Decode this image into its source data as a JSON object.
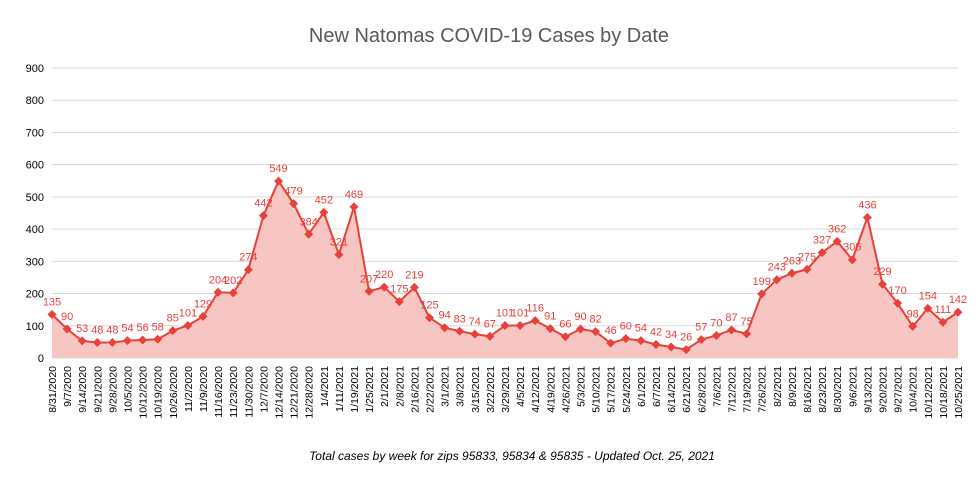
{
  "chart_data": {
    "type": "area",
    "title": "New Natomas COVID-19 Cases by Date",
    "caption": "Total cases by week for zips 95833, 95834 & 95835 - Updated Oct. 25, 2021",
    "xlabel": "",
    "ylabel": "",
    "ylim": [
      0,
      900
    ],
    "yticks": [
      0,
      100,
      200,
      300,
      400,
      500,
      600,
      700,
      800,
      900
    ],
    "grid": true,
    "legend": "none",
    "colors": {
      "line": "#e8403a",
      "fill": "#f8c6c2",
      "label": "#e8403a",
      "grid": "#d9d9d9",
      "title": "#595959"
    },
    "categories": [
      "8/31/2020",
      "9/7/2020",
      "9/14/2020",
      "9/21/2020",
      "9/28/2020",
      "10/5/2020",
      "10/12/2020",
      "10/19/2020",
      "10/26/2020",
      "11/2/2020",
      "11/9/2020",
      "11/16/2020",
      "11/23/2020",
      "11/30/2020",
      "12/7/2020",
      "12/14/2020",
      "12/21/2020",
      "12/28/2020",
      "1/4/2021",
      "1/11/2021",
      "1/19/2021",
      "1/25/2021",
      "2/1/2021",
      "2/8/2021",
      "2/16/2021",
      "2/22/2021",
      "3/1/2021",
      "3/8/2021",
      "3/15/2021",
      "3/22/2021",
      "3/29/2021",
      "4/5/2021",
      "4/12/2021",
      "4/19/2021",
      "4/26/2021",
      "5/3/2021",
      "5/10/2021",
      "5/17/2021",
      "5/24/2021",
      "6/1/2021",
      "6/7/2021",
      "6/14/2021",
      "6/21/2021",
      "6/28/2021",
      "7/6/2021",
      "7/12/2021",
      "7/19/2021",
      "7/26/2021",
      "8/2/2021",
      "8/9/2021",
      "8/16/2021",
      "8/23/2021",
      "8/30/2021",
      "9/6/2021",
      "9/13/2021",
      "9/20/2021",
      "9/27/2021",
      "10/4/2021",
      "10/12/2021",
      "10/18/2021",
      "10/25/2021"
    ],
    "values": [
      135,
      90,
      53,
      48,
      48,
      54,
      56,
      58,
      85,
      101,
      129,
      204,
      202,
      274,
      442,
      549,
      479,
      384,
      452,
      321,
      469,
      207,
      220,
      175,
      219,
      125,
      94,
      83,
      74,
      67,
      101,
      101,
      116,
      91,
      66,
      90,
      82,
      46,
      60,
      54,
      42,
      34,
      26,
      57,
      70,
      87,
      75,
      199,
      243,
      263,
      275,
      327,
      362,
      305,
      436,
      229,
      170,
      98,
      154,
      111,
      142
    ],
    "data_labels": [
      "135",
      "90",
      "53",
      "48",
      "48",
      "54",
      "56",
      "58",
      "85",
      "101",
      "129",
      "204",
      "202",
      "274",
      "442",
      "549",
      "479",
      "384",
      "452",
      "321",
      "469",
      "207",
      "220",
      "175",
      "219",
      "125",
      "94",
      "83",
      "74",
      "67",
      "101",
      "101",
      "116",
      "91",
      "66",
      "90",
      "82",
      "46",
      "60",
      "54",
      "42",
      "34",
      "26",
      "57",
      "70",
      "87",
      "75",
      "199",
      "243",
      "263",
      "275",
      "327",
      "362",
      "305",
      "436",
      "229",
      "170",
      "98",
      "154",
      "111",
      "142"
    ]
  }
}
